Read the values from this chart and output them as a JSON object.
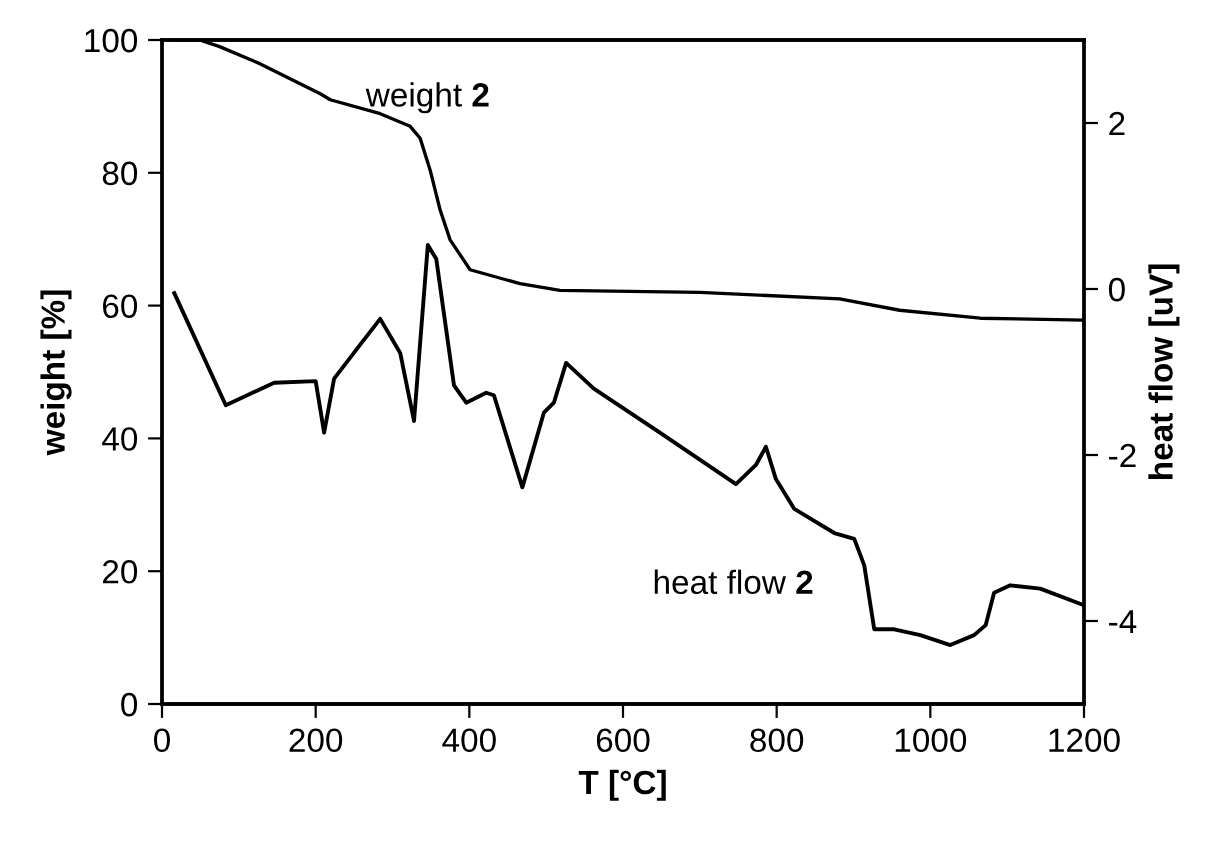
{
  "chart_data": {
    "type": "line",
    "xlabel": "T [°C]",
    "ylabel": "weight [%]",
    "y2label": "heat flow [uV]",
    "xlim": [
      0,
      1200
    ],
    "xticks": [
      0,
      200,
      400,
      600,
      800,
      1000,
      1200
    ],
    "ylim": [
      0,
      100
    ],
    "yticks": [
      0,
      20,
      40,
      60,
      80,
      100
    ],
    "y2lim": [
      -5,
      3
    ],
    "y2ticks": [
      -4,
      -2,
      0,
      2
    ],
    "grid": false,
    "legend": false,
    "marker": "none",
    "line_style": "solid",
    "series": [
      {
        "color": "#000000",
        "axis": "y",
        "x": [
          18,
          49,
          75,
          128,
          206,
          219,
          284,
          323,
          336,
          349,
          362,
          375,
          401,
          466,
          518,
          700,
          882,
          960,
          1065,
          1200
        ],
        "values": [
          100,
          100,
          99,
          96.4,
          91.9,
          91,
          88.9,
          87,
          85.2,
          80.4,
          74.4,
          69.9,
          65.4,
          63.3,
          62.3,
          62,
          61,
          59.3,
          58.1,
          57.8
        ]
      },
      {
        "color": "#000000",
        "axis": "y2",
        "x": [
          16,
          83,
          146,
          200,
          211,
          224,
          258,
          284,
          310,
          328,
          346,
          357,
          380,
          396,
          422,
          432,
          469,
          497,
          510,
          526,
          562,
          648,
          747,
          773,
          786,
          799,
          823,
          875,
          901,
          914,
          927,
          953,
          987,
          1026,
          1057,
          1072,
          1083,
          1104,
          1143,
          1200
        ],
        "values": [
          -0.05,
          -1.4,
          -1.13,
          -1.11,
          -1.73,
          -1.08,
          -0.67,
          -0.36,
          -0.77,
          -1.59,
          0.53,
          0.36,
          -1.16,
          -1.37,
          -1.25,
          -1.28,
          -2.39,
          -1.49,
          -1.37,
          -0.89,
          -1.2,
          -1.73,
          -2.35,
          -2.12,
          -1.9,
          -2.29,
          -2.65,
          -2.94,
          -3.01,
          -3.33,
          -4.1,
          -4.1,
          -4.17,
          -4.29,
          -4.17,
          -4.05,
          -3.66,
          -3.57,
          -3.61,
          -3.81
        ]
      }
    ],
    "annotations": [
      "weight 2",
      "heat flow 2"
    ]
  }
}
